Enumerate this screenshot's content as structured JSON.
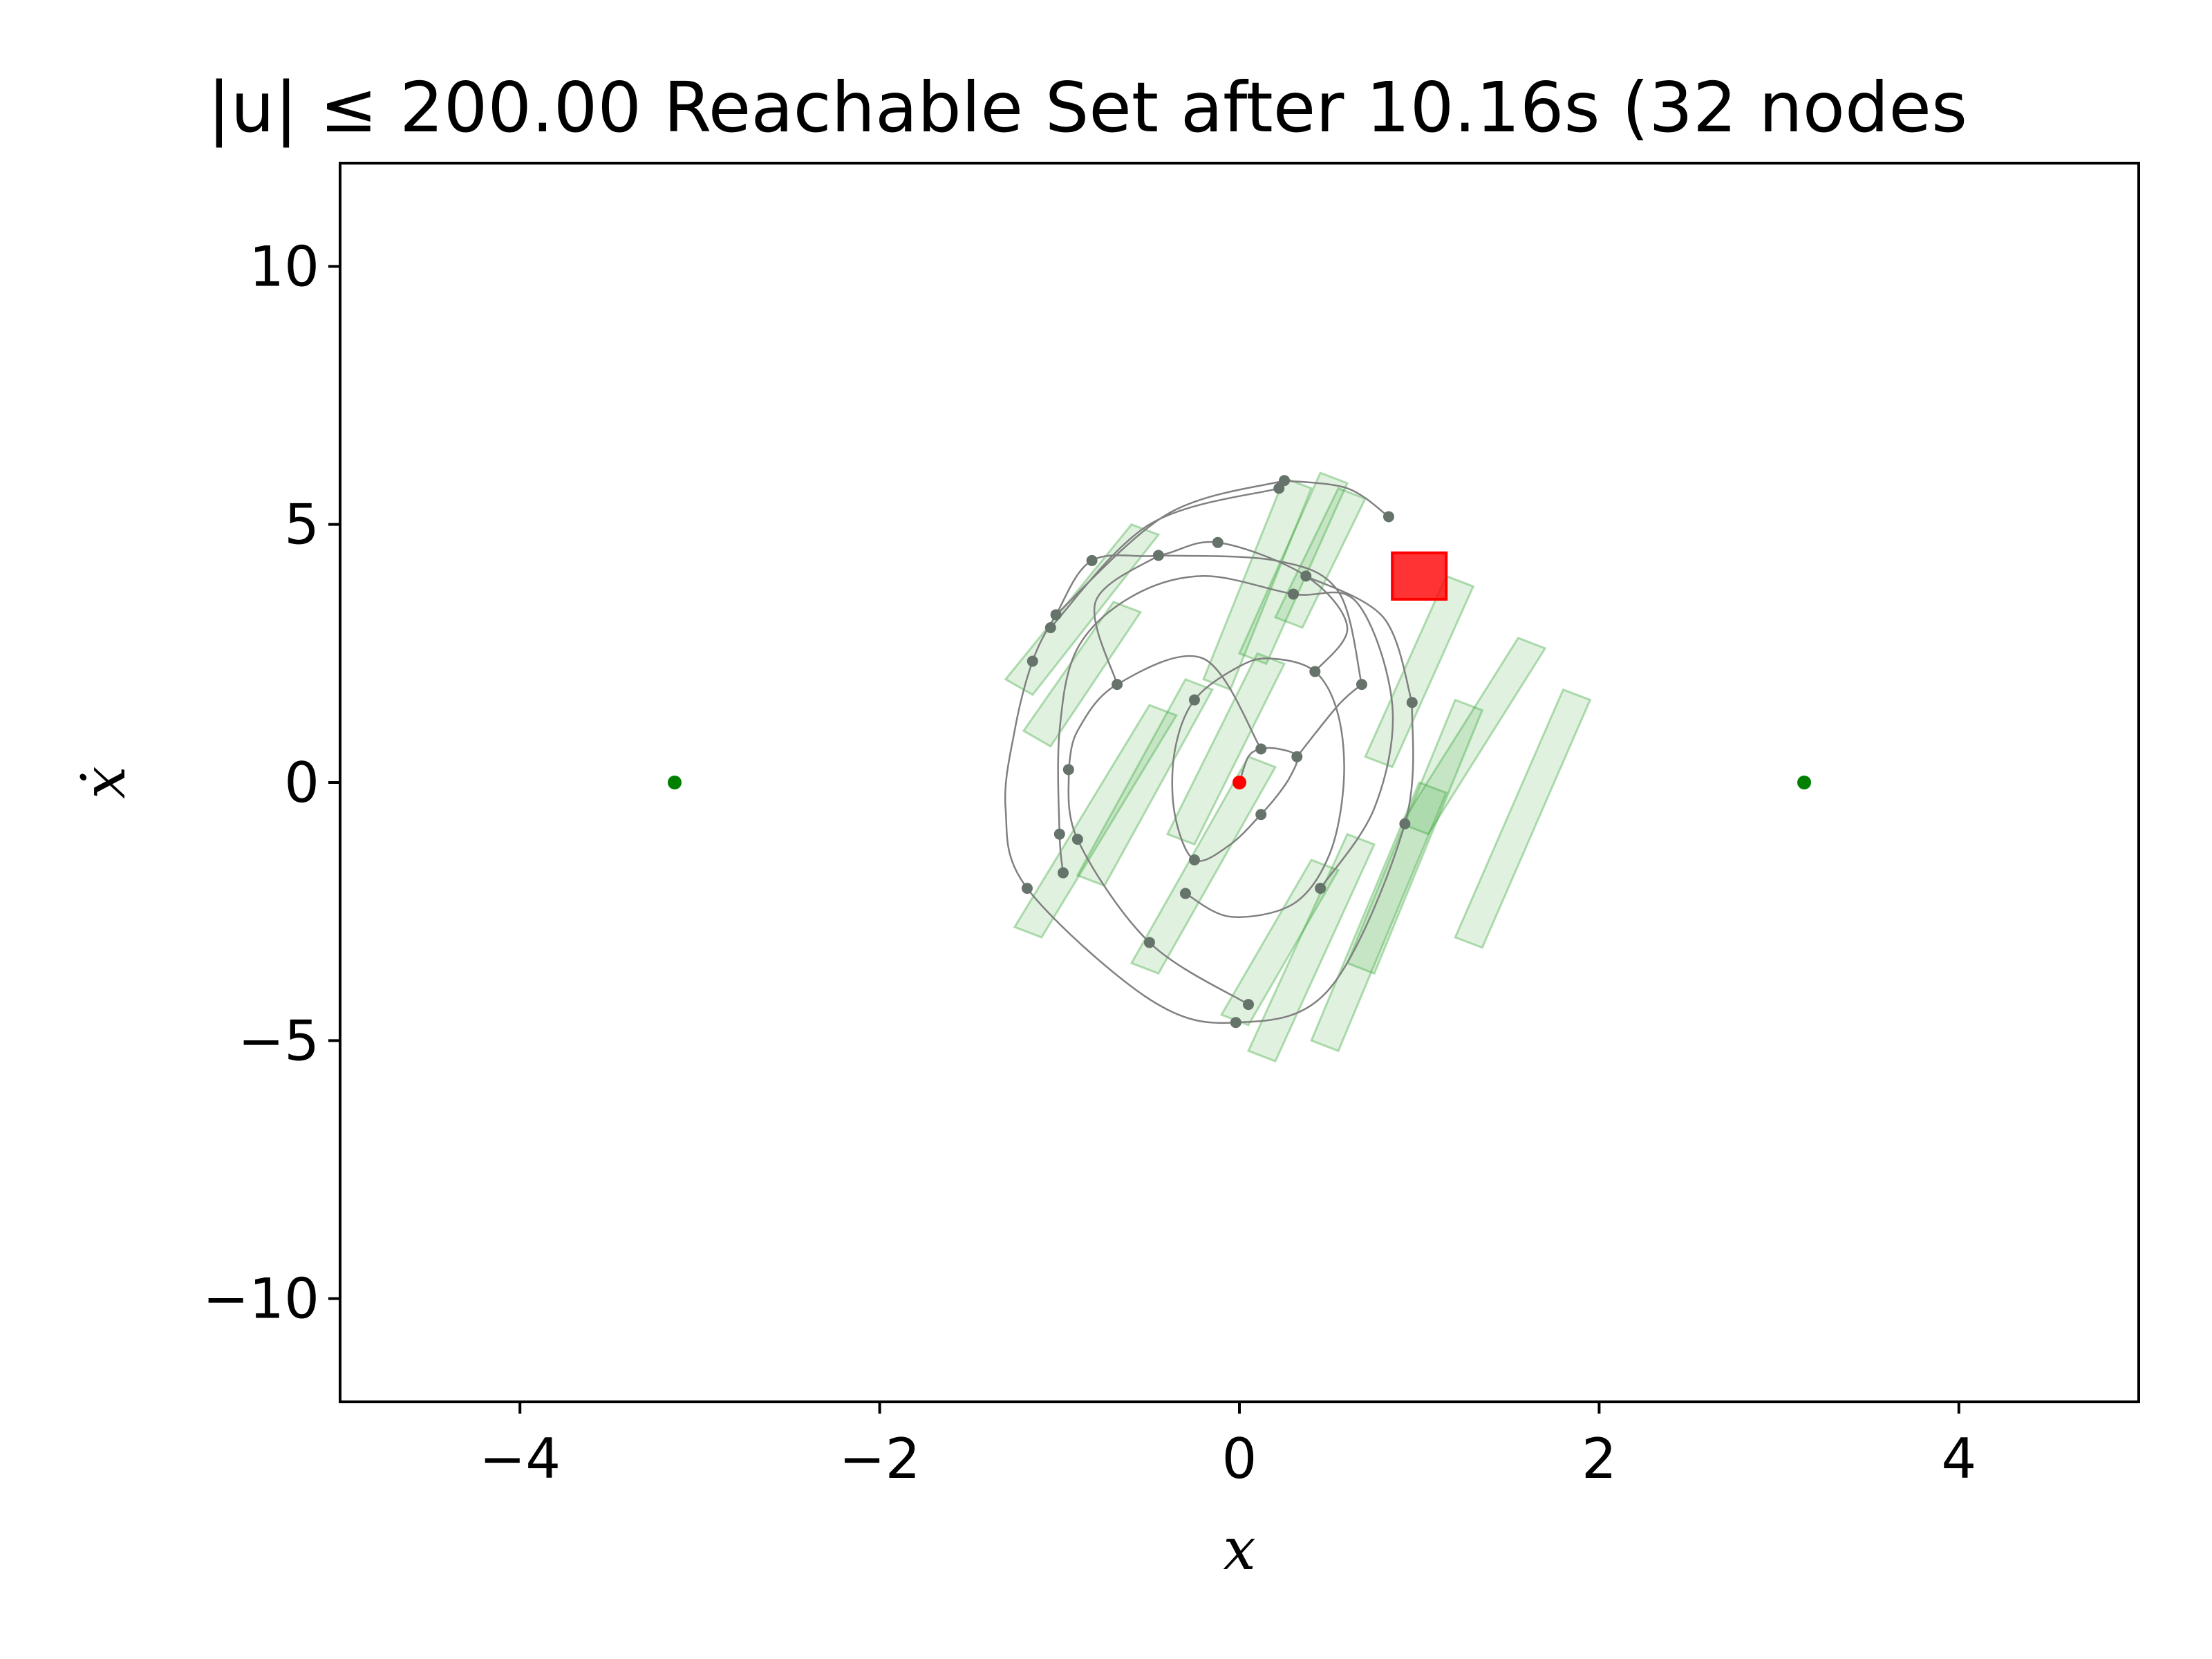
{
  "chart_data": {
    "type": "scatter",
    "title": "|u| ≤ 200.00 Reachable Set after 10.16s (32 nodes",
    "xlabel": "x",
    "ylabel": "ẋ",
    "xlim": [
      -5,
      5
    ],
    "ylim": [
      -12,
      12
    ],
    "xticks": [
      -4,
      -2,
      0,
      2,
      4
    ],
    "xtick_labels": [
      "−4",
      "−2",
      "0",
      "2",
      "4"
    ],
    "yticks": [
      10,
      5,
      0,
      -5,
      -10
    ],
    "ytick_labels": [
      "10",
      "5",
      "0",
      "−5",
      "−10"
    ],
    "grid": false,
    "colors": {
      "trajectory": "#808080",
      "node": "#66736a",
      "reachable_set": "#2ca02c",
      "goal": "#ff0000",
      "start": "#ff0000",
      "equilibrium": "#008000"
    },
    "equilibria": [
      {
        "x": -3.14,
        "y": 0
      },
      {
        "x": 3.14,
        "y": 0
      }
    ],
    "start": {
      "x": 0,
      "y": 0
    },
    "goal_region": {
      "x0": 0.85,
      "x1": 1.15,
      "y0": 3.55,
      "y1": 4.45
    },
    "nodes": [
      {
        "x": 0.0,
        "y": 0.0
      },
      {
        "x": 0.12,
        "y": 0.65
      },
      {
        "x": 0.32,
        "y": 0.5
      },
      {
        "x": 0.12,
        "y": -0.62
      },
      {
        "x": -0.25,
        "y": 1.6
      },
      {
        "x": -0.25,
        "y": -1.5
      },
      {
        "x": 0.42,
        "y": 2.15
      },
      {
        "x": -0.3,
        "y": -2.15
      },
      {
        "x": 0.68,
        "y": 1.9
      },
      {
        "x": 0.45,
        "y": -2.05
      },
      {
        "x": -0.68,
        "y": 1.9
      },
      {
        "x": -0.95,
        "y": 0.25
      },
      {
        "x": -0.9,
        "y": -1.1
      },
      {
        "x": -0.5,
        "y": -3.1
      },
      {
        "x": 0.05,
        "y": -4.3
      },
      {
        "x": -0.02,
        "y": -4.65
      },
      {
        "x": 0.92,
        "y": -0.8
      },
      {
        "x": 0.96,
        "y": 1.55
      },
      {
        "x": 0.37,
        "y": 4.0
      },
      {
        "x": 0.3,
        "y": 3.65
      },
      {
        "x": -0.12,
        "y": 4.65
      },
      {
        "x": -0.45,
        "y": 4.4
      },
      {
        "x": -0.82,
        "y": 4.3
      },
      {
        "x": -1.02,
        "y": 3.25
      },
      {
        "x": -1.05,
        "y": 3.0
      },
      {
        "x": -1.15,
        "y": 2.35
      },
      {
        "x": -1.0,
        "y": -1.0
      },
      {
        "x": -0.98,
        "y": -1.75
      },
      {
        "x": -1.18,
        "y": -2.05
      },
      {
        "x": 0.22,
        "y": 5.7
      },
      {
        "x": 0.25,
        "y": 5.85
      },
      {
        "x": 0.83,
        "y": 5.15
      }
    ],
    "trajectories": [
      [
        [
          0,
          0
        ],
        [
          0.05,
          0.5
        ],
        [
          0.12,
          0.65
        ],
        [
          0.22,
          0.65
        ],
        [
          0.32,
          0.5
        ],
        [
          0.28,
          0.1
        ],
        [
          0.2,
          -0.3
        ],
        [
          0.12,
          -0.62
        ]
      ],
      [
        [
          0.12,
          -0.62
        ],
        [
          -0.05,
          -1.2
        ],
        [
          -0.25,
          -1.5
        ],
        [
          -0.36,
          -0.6
        ],
        [
          -0.36,
          0.6
        ],
        [
          -0.25,
          1.6
        ],
        [
          0.0,
          2.25
        ],
        [
          0.18,
          2.4
        ],
        [
          0.42,
          2.15
        ],
        [
          0.55,
          1.3
        ],
        [
          0.58,
          0
        ],
        [
          0.5,
          -1.4
        ],
        [
          0.3,
          -2.35
        ],
        [
          -0.05,
          -2.6
        ],
        [
          -0.3,
          -2.15
        ]
      ],
      [
        [
          0.32,
          0.5
        ],
        [
          0.55,
          1.5
        ],
        [
          0.68,
          1.9
        ]
      ],
      [
        [
          0.12,
          0.65
        ],
        [
          -0.2,
          2.4
        ],
        [
          -0.68,
          1.9
        ],
        [
          -0.9,
          1.0
        ],
        [
          -0.95,
          0.25
        ]
      ],
      [
        [
          -0.95,
          0.25
        ],
        [
          -0.9,
          -1.1
        ],
        [
          -0.5,
          -3.1
        ],
        [
          0.05,
          -4.3
        ]
      ],
      [
        [
          0.42,
          2.15
        ],
        [
          0.6,
          3.0
        ],
        [
          0.37,
          4.0
        ],
        [
          -0.12,
          4.65
        ],
        [
          -0.45,
          4.4
        ],
        [
          -0.82,
          4.3
        ],
        [
          -1.02,
          3.25
        ],
        [
          -1.15,
          2.35
        ],
        [
          -1.25,
          1.0
        ],
        [
          -1.3,
          -0.5
        ],
        [
          -1.18,
          -2.05
        ],
        [
          -0.5,
          -4.2
        ],
        [
          -0.02,
          -4.65
        ],
        [
          0.5,
          -4.0
        ],
        [
          0.92,
          -0.8
        ],
        [
          0.96,
          1.55
        ]
      ],
      [
        [
          0.45,
          -2.05
        ],
        [
          0.75,
          -0.5
        ],
        [
          0.85,
          1.5
        ],
        [
          0.65,
          3.5
        ],
        [
          0.3,
          3.65
        ],
        [
          -0.2,
          4.0
        ],
        [
          -0.6,
          3.6
        ],
        [
          -0.9,
          2.6
        ],
        [
          -1.0,
          1.0
        ],
        [
          -1.0,
          -1.0
        ],
        [
          -0.98,
          -1.75
        ]
      ],
      [
        [
          -0.68,
          1.9
        ],
        [
          -0.8,
          3.5
        ],
        [
          -0.45,
          4.4
        ]
      ],
      [
        [
          -1.05,
          3.0
        ],
        [
          -0.5,
          5.0
        ],
        [
          0.22,
          5.7
        ]
      ],
      [
        [
          -1.02,
          3.25
        ],
        [
          -0.4,
          5.2
        ],
        [
          0.25,
          5.85
        ]
      ],
      [
        [
          0.25,
          5.85
        ],
        [
          0.6,
          5.7
        ],
        [
          0.83,
          5.15
        ]
      ],
      [
        [
          0.37,
          4.0
        ],
        [
          0.8,
          3.2
        ],
        [
          0.96,
          1.55
        ]
      ],
      [
        [
          -0.45,
          4.4
        ],
        [
          0.2,
          4.3
        ],
        [
          0.55,
          3.7
        ],
        [
          0.68,
          1.9
        ]
      ]
    ],
    "reachable_sets": [
      [
        [
          -1.3,
          2.0
        ],
        [
          -0.6,
          5.0
        ],
        [
          -0.45,
          4.8
        ],
        [
          -1.15,
          1.7
        ]
      ],
      [
        [
          -1.2,
          1.0
        ],
        [
          -0.7,
          3.5
        ],
        [
          -0.55,
          3.3
        ],
        [
          -1.05,
          0.7
        ]
      ],
      [
        [
          -1.25,
          -2.8
        ],
        [
          -0.5,
          1.5
        ],
        [
          -0.35,
          1.3
        ],
        [
          -1.1,
          -3.0
        ]
      ],
      [
        [
          -0.9,
          -1.8
        ],
        [
          -0.3,
          2.0
        ],
        [
          -0.15,
          1.8
        ],
        [
          -0.75,
          -2.0
        ]
      ],
      [
        [
          -0.2,
          2.0
        ],
        [
          0.25,
          5.9
        ],
        [
          0.4,
          5.7
        ],
        [
          -0.05,
          1.8
        ]
      ],
      [
        [
          0.0,
          2.5
        ],
        [
          0.45,
          6.0
        ],
        [
          0.6,
          5.8
        ],
        [
          0.15,
          2.3
        ]
      ],
      [
        [
          0.2,
          3.2
        ],
        [
          0.55,
          5.7
        ],
        [
          0.7,
          5.5
        ],
        [
          0.35,
          3.0
        ]
      ],
      [
        [
          -0.4,
          -1.0
        ],
        [
          0.1,
          2.5
        ],
        [
          0.25,
          2.3
        ],
        [
          -0.25,
          -1.2
        ]
      ],
      [
        [
          0.05,
          -5.2
        ],
        [
          0.6,
          -1.0
        ],
        [
          0.75,
          -1.2
        ],
        [
          0.2,
          -5.4
        ]
      ],
      [
        [
          0.4,
          -5.0
        ],
        [
          1.0,
          0.0
        ],
        [
          1.15,
          -0.2
        ],
        [
          0.55,
          -5.2
        ]
      ],
      [
        [
          0.6,
          -3.5
        ],
        [
          1.2,
          1.6
        ],
        [
          1.35,
          1.4
        ],
        [
          0.75,
          -3.7
        ]
      ],
      [
        [
          0.9,
          -0.8
        ],
        [
          1.55,
          2.8
        ],
        [
          1.7,
          2.6
        ],
        [
          1.05,
          -1.0
        ]
      ],
      [
        [
          1.2,
          -3.0
        ],
        [
          1.8,
          1.8
        ],
        [
          1.95,
          1.6
        ],
        [
          1.35,
          -3.2
        ]
      ],
      [
        [
          0.7,
          0.5
        ],
        [
          1.15,
          4.0
        ],
        [
          1.3,
          3.8
        ],
        [
          0.85,
          0.3
        ]
      ],
      [
        [
          -0.6,
          -3.5
        ],
        [
          0.05,
          0.5
        ],
        [
          0.2,
          0.3
        ],
        [
          -0.45,
          -3.7
        ]
      ],
      [
        [
          -0.1,
          -4.5
        ],
        [
          0.4,
          -1.5
        ],
        [
          0.55,
          -1.7
        ],
        [
          0.05,
          -4.7
        ]
      ]
    ]
  }
}
